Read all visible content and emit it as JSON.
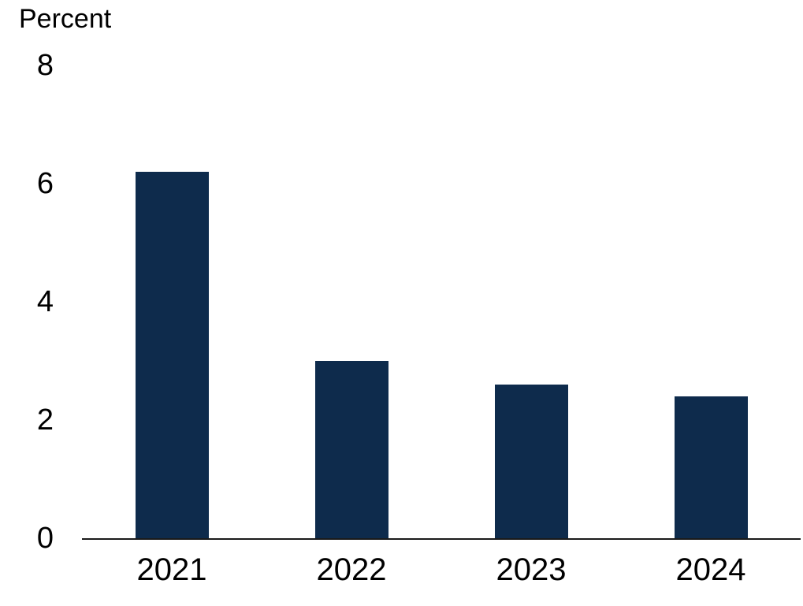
{
  "chart_data": {
    "type": "bar",
    "title": "",
    "ylabel": "Percent",
    "xlabel": "",
    "categories": [
      "2021",
      "2022",
      "2023",
      "2024"
    ],
    "values": [
      6.2,
      3.0,
      2.6,
      2.4
    ],
    "yticks": [
      0,
      2,
      4,
      6,
      8
    ],
    "ylim": [
      0,
      8
    ],
    "grid": false,
    "legend": "none",
    "bar_color": "#0e2b4c",
    "axis_color": "#1a1a1a",
    "text_color": "#000000"
  }
}
